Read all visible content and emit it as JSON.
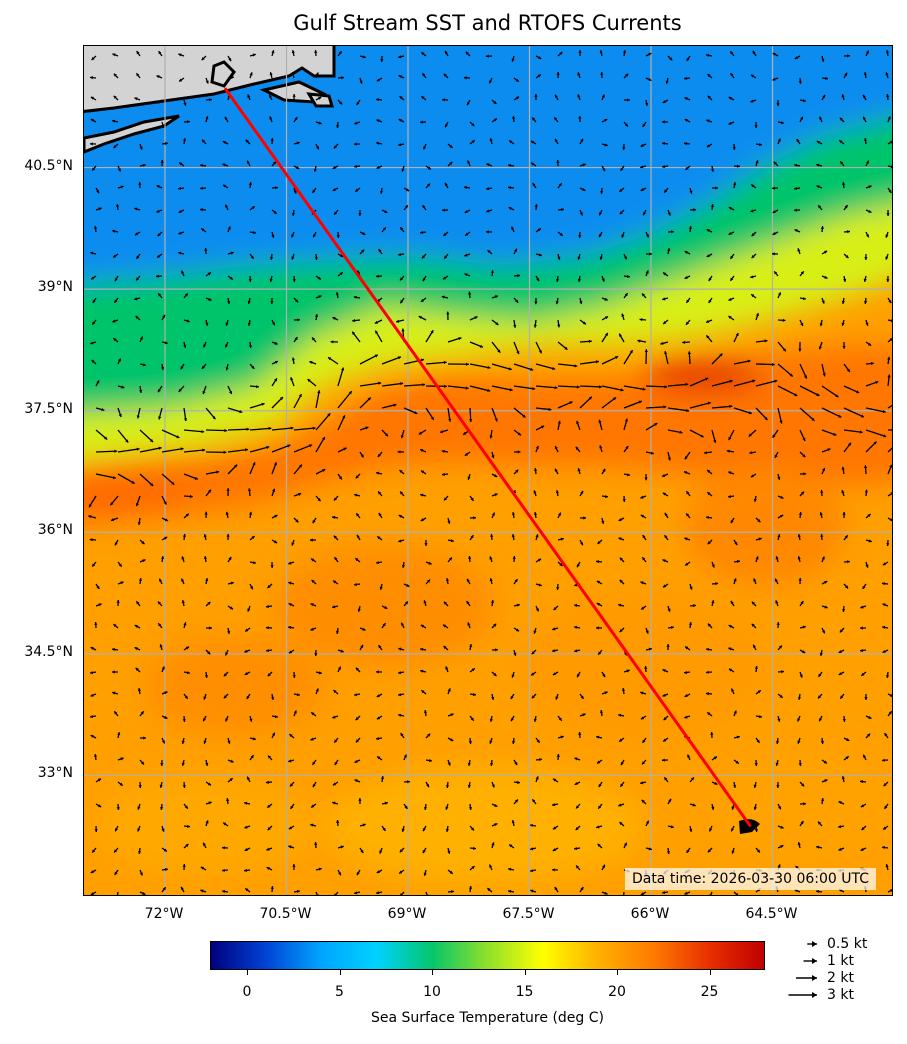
{
  "title": "Gulf Stream SST and RTOFS Currents",
  "map": {
    "extent": {
      "lon_min": -73.0,
      "lon_max": -63.0,
      "lat_min": 31.5,
      "lat_max": 42.0
    },
    "lat_ticks": [
      {
        "value": 40.5,
        "label": "40.5°N"
      },
      {
        "value": 39.0,
        "label": "39°N"
      },
      {
        "value": 37.5,
        "label": "37.5°N"
      },
      {
        "value": 36.0,
        "label": "36°N"
      },
      {
        "value": 34.5,
        "label": "34.5°N"
      },
      {
        "value": 33.0,
        "label": "33°N"
      }
    ],
    "lon_ticks": [
      {
        "value": -72.0,
        "label": "72°W"
      },
      {
        "value": -70.5,
        "label": "70.5°W"
      },
      {
        "value": -69.0,
        "label": "69°W"
      },
      {
        "value": -67.5,
        "label": "67.5°W"
      },
      {
        "value": -66.0,
        "label": "66°W"
      },
      {
        "value": -64.5,
        "label": "64.5°W"
      }
    ],
    "track": {
      "start": {
        "lon": -71.26,
        "lat": 41.48
      },
      "end": {
        "lon": -64.77,
        "lat": 32.37
      },
      "color": "#ff0000"
    },
    "gulf_stream_axis": [
      {
        "lon": -73.0,
        "lat": 36.85
      },
      {
        "lon": -71.5,
        "lat": 37.15
      },
      {
        "lon": -70.2,
        "lat": 37.2
      },
      {
        "lon": -69.6,
        "lat": 37.9
      },
      {
        "lon": -68.4,
        "lat": 37.95
      },
      {
        "lon": -66.8,
        "lat": 37.85
      },
      {
        "lon": -65.6,
        "lat": 37.6
      },
      {
        "lon": -64.5,
        "lat": 37.9
      },
      {
        "lon": -63.2,
        "lat": 37.3
      }
    ],
    "data_time": "Data time: 2026-03-30 06:00 UTC",
    "land_color": "#d3d3d3",
    "grid_color": "#b0b0b0"
  },
  "colorbar": {
    "vmin": -2,
    "vmax": 28,
    "ticks": [
      0,
      5,
      10,
      15,
      20,
      25
    ],
    "label": "Sea Surface Temperature (deg C)",
    "colormap": "jet-like",
    "stops": [
      "#00007f",
      "#0044d5",
      "#00a5ff",
      "#00d2ff",
      "#05c66b",
      "#8ee02a",
      "#ffff00",
      "#ffb000",
      "#ff7a00",
      "#e83000",
      "#c00000"
    ]
  },
  "current_scale": {
    "items": [
      {
        "speed": 0.5,
        "label": "0.5 kt"
      },
      {
        "speed": 1,
        "label": "1 kt"
      },
      {
        "speed": 2,
        "label": "2 kt"
      },
      {
        "speed": 3,
        "label": "3 kt"
      }
    ]
  }
}
